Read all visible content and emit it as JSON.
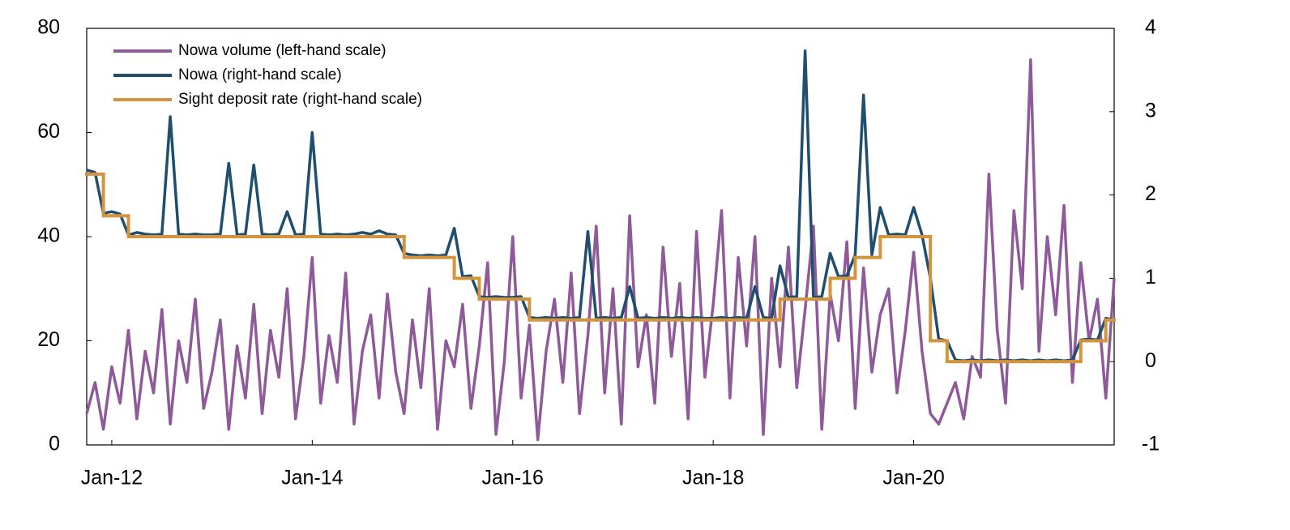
{
  "chart_data": {
    "type": "line",
    "x": [
      "2011-10",
      "2011-11",
      "2011-12",
      "2012-01",
      "2012-02",
      "2012-03",
      "2012-04",
      "2012-05",
      "2012-06",
      "2012-07",
      "2012-08",
      "2012-09",
      "2012-10",
      "2012-11",
      "2012-12",
      "2013-01",
      "2013-02",
      "2013-03",
      "2013-04",
      "2013-05",
      "2013-06",
      "2013-07",
      "2013-08",
      "2013-09",
      "2013-10",
      "2013-11",
      "2013-12",
      "2014-01",
      "2014-02",
      "2014-03",
      "2014-04",
      "2014-05",
      "2014-06",
      "2014-07",
      "2014-08",
      "2014-09",
      "2014-10",
      "2014-11",
      "2014-12",
      "2015-01",
      "2015-02",
      "2015-03",
      "2015-04",
      "2015-05",
      "2015-06",
      "2015-07",
      "2015-08",
      "2015-09",
      "2015-10",
      "2015-11",
      "2015-12",
      "2016-01",
      "2016-02",
      "2016-03",
      "2016-04",
      "2016-05",
      "2016-06",
      "2016-07",
      "2016-08",
      "2016-09",
      "2016-10",
      "2016-11",
      "2016-12",
      "2017-01",
      "2017-02",
      "2017-03",
      "2017-04",
      "2017-05",
      "2017-06",
      "2017-07",
      "2017-08",
      "2017-09",
      "2017-10",
      "2017-11",
      "2017-12",
      "2018-01",
      "2018-02",
      "2018-03",
      "2018-04",
      "2018-05",
      "2018-06",
      "2018-07",
      "2018-08",
      "2018-09",
      "2018-10",
      "2018-11",
      "2018-12",
      "2019-01",
      "2019-02",
      "2019-03",
      "2019-04",
      "2019-05",
      "2019-06",
      "2019-07",
      "2019-08",
      "2019-09",
      "2019-10",
      "2019-11",
      "2019-12",
      "2020-01",
      "2020-02",
      "2020-03",
      "2020-04",
      "2020-05",
      "2020-06",
      "2020-07",
      "2020-08",
      "2020-09",
      "2020-10",
      "2020-11",
      "2020-12",
      "2021-01",
      "2021-02",
      "2021-03",
      "2021-04",
      "2021-05",
      "2021-06",
      "2021-07",
      "2021-08",
      "2021-09",
      "2021-10",
      "2021-11",
      "2021-12",
      "2022-01"
    ],
    "series": [
      {
        "name": "Nowa volume (left-hand scale)",
        "color": "#8e5a99",
        "axis": "y",
        "values": [
          6,
          12,
          3,
          15,
          8,
          22,
          5,
          18,
          10,
          26,
          4,
          20,
          12,
          28,
          7,
          14,
          24,
          3,
          19,
          9,
          27,
          6,
          22,
          13,
          30,
          5,
          17,
          36,
          8,
          21,
          12,
          33,
          4,
          18,
          25,
          9,
          29,
          14,
          6,
          24,
          11,
          30,
          3,
          20,
          15,
          27,
          7,
          19,
          35,
          2,
          16,
          40,
          9,
          23,
          1,
          18,
          28,
          12,
          33,
          6,
          21,
          42,
          10,
          30,
          4,
          44,
          15,
          25,
          8,
          38,
          17,
          31,
          5,
          41,
          13,
          27,
          45,
          9,
          36,
          19,
          40,
          2,
          32,
          15,
          38,
          11,
          26,
          42,
          3,
          29,
          20,
          39,
          7,
          34,
          14,
          25,
          30,
          10,
          22,
          37,
          18,
          6,
          4,
          8,
          12,
          5,
          17,
          13,
          52,
          22,
          8,
          45,
          30,
          74,
          18,
          40,
          25,
          46,
          12,
          35,
          20,
          28,
          9,
          32
        ]
      },
      {
        "name": "Nowa (right-hand scale)",
        "color": "#1f4e6e",
        "axis": "y2",
        "values": [
          2.3,
          2.27,
          1.78,
          1.8,
          1.77,
          1.52,
          1.55,
          1.53,
          1.52,
          1.53,
          2.94,
          1.53,
          1.52,
          1.53,
          1.52,
          1.52,
          1.53,
          2.38,
          1.52,
          1.53,
          2.36,
          1.53,
          1.52,
          1.53,
          1.8,
          1.52,
          1.53,
          2.75,
          1.53,
          1.52,
          1.53,
          1.52,
          1.53,
          1.55,
          1.53,
          1.57,
          1.53,
          1.52,
          1.3,
          1.28,
          1.27,
          1.28,
          1.27,
          1.28,
          1.6,
          1.02,
          1.03,
          0.78,
          0.77,
          0.78,
          0.77,
          0.77,
          0.78,
          0.53,
          0.52,
          0.53,
          0.52,
          0.53,
          0.52,
          0.53,
          1.56,
          0.52,
          0.53,
          0.52,
          0.53,
          0.9,
          0.52,
          0.53,
          0.52,
          0.53,
          0.52,
          0.53,
          0.52,
          0.53,
          0.52,
          0.52,
          0.53,
          0.52,
          0.53,
          0.52,
          0.9,
          0.53,
          0.52,
          1.15,
          0.77,
          0.78,
          3.73,
          0.77,
          0.78,
          1.3,
          1.02,
          1.03,
          1.28,
          3.2,
          1.28,
          1.85,
          1.52,
          1.53,
          1.52,
          1.85,
          1.52,
          1.0,
          0.27,
          0.25,
          0.02,
          0.01,
          0.02,
          0.01,
          0.02,
          0.01,
          0.02,
          0.01,
          0.02,
          0.01,
          0.02,
          0.01,
          0.02,
          0.01,
          0.02,
          0.26,
          0.27,
          0.26,
          0.52,
          0.5
        ]
      },
      {
        "name": "Sight deposit rate (right-hand scale)",
        "color": "#d4943e",
        "axis": "y2",
        "step": true,
        "values": [
          2.25,
          2.25,
          1.75,
          1.75,
          1.75,
          1.5,
          1.5,
          1.5,
          1.5,
          1.5,
          1.5,
          1.5,
          1.5,
          1.5,
          1.5,
          1.5,
          1.5,
          1.5,
          1.5,
          1.5,
          1.5,
          1.5,
          1.5,
          1.5,
          1.5,
          1.5,
          1.5,
          1.5,
          1.5,
          1.5,
          1.5,
          1.5,
          1.5,
          1.5,
          1.5,
          1.5,
          1.5,
          1.5,
          1.25,
          1.25,
          1.25,
          1.25,
          1.25,
          1.25,
          1.0,
          1.0,
          1.0,
          0.75,
          0.75,
          0.75,
          0.75,
          0.75,
          0.75,
          0.5,
          0.5,
          0.5,
          0.5,
          0.5,
          0.5,
          0.5,
          0.5,
          0.5,
          0.5,
          0.5,
          0.5,
          0.5,
          0.5,
          0.5,
          0.5,
          0.5,
          0.5,
          0.5,
          0.5,
          0.5,
          0.5,
          0.5,
          0.5,
          0.5,
          0.5,
          0.5,
          0.5,
          0.5,
          0.5,
          0.75,
          0.75,
          0.75,
          0.75,
          0.75,
          0.75,
          1.0,
          1.0,
          1.0,
          1.25,
          1.25,
          1.25,
          1.5,
          1.5,
          1.5,
          1.5,
          1.5,
          1.5,
          0.25,
          0.25,
          0,
          0,
          0,
          0,
          0,
          0,
          0,
          0,
          0,
          0,
          0,
          0,
          0,
          0,
          0,
          0,
          0.25,
          0.25,
          0.25,
          0.5,
          0.5
        ]
      }
    ],
    "xlim": [
      "2011-10",
      "2022-01"
    ],
    "xticks": [
      {
        "value": "2012-01",
        "label": "Jan-12"
      },
      {
        "value": "2014-01",
        "label": "Jan-14"
      },
      {
        "value": "2016-01",
        "label": "Jan-16"
      },
      {
        "value": "2018-01",
        "label": "Jan-18"
      },
      {
        "value": "2020-01",
        "label": "Jan-20"
      }
    ],
    "ylim": [
      0,
      80
    ],
    "yticks": [
      0,
      20,
      40,
      60,
      80
    ],
    "y2lim": [
      -1,
      4
    ],
    "y2ticks": [
      -1,
      0,
      1,
      2,
      3,
      4
    ],
    "legend": "upper-left"
  }
}
